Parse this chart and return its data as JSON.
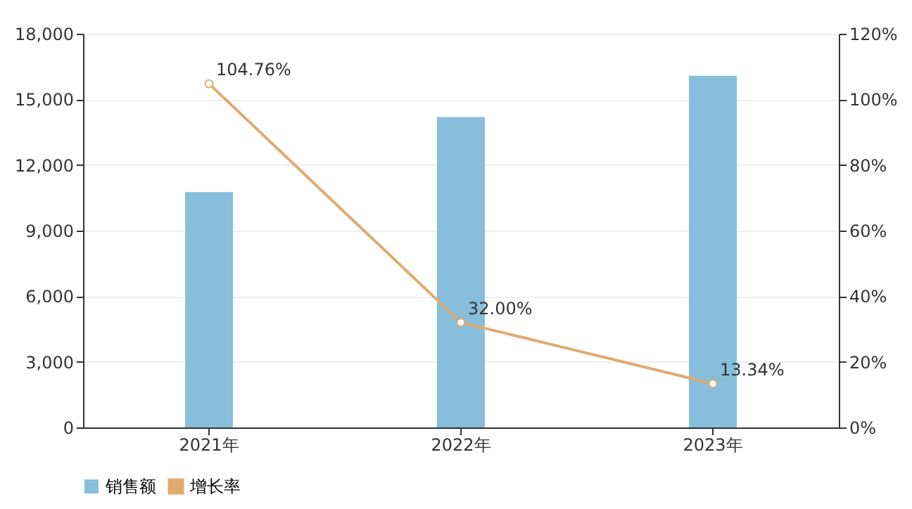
{
  "chart_data": {
    "type": "bar",
    "categories": [
      "2021年",
      "2022年",
      "2023年"
    ],
    "series": [
      {
        "name": "销售额",
        "color": "#86bedb",
        "values": [
          10760,
          14190,
          16080
        ]
      },
      {
        "name": "增长率",
        "type": "line",
        "axis": "y2",
        "color": "#e0aa6e",
        "marker": "circle",
        "values": [
          104.76,
          32.0,
          13.34
        ],
        "value_labels": [
          "104.76%",
          "32.00%",
          "13.34%"
        ]
      }
    ],
    "ylim": [
      0,
      18000
    ],
    "yticks": [
      0,
      {
        "value": 3000,
        "label": "3,000"
      },
      {
        "value": 6000,
        "label": "6,000"
      },
      {
        "value": 9000,
        "label": "9,000"
      },
      {
        "value": 12000,
        "label": "12,000"
      },
      {
        "value": 15000,
        "label": "15,000"
      },
      {
        "value": 18000,
        "label": "18,000"
      }
    ],
    "y2lim": [
      0,
      120
    ],
    "y2ticks": [
      {
        "value": 0,
        "label": "0%"
      },
      {
        "value": 20,
        "label": "20%"
      },
      {
        "value": 40,
        "label": "40%"
      },
      {
        "value": 60,
        "label": "60%"
      },
      {
        "value": 80,
        "label": "80%"
      },
      {
        "value": 100,
        "label": "100%"
      },
      {
        "value": 120,
        "label": "120%"
      }
    ],
    "grid": "y",
    "legend": "bottom"
  }
}
